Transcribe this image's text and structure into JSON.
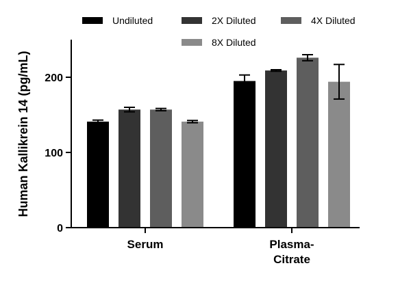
{
  "chart_data": {
    "type": "bar",
    "title": "",
    "xlabel": "",
    "ylabel": "Human Kallikrein 14 (pg/mL)",
    "ylim": [
      0,
      250
    ],
    "yticks": [
      0,
      100,
      200
    ],
    "categories": [
      {
        "lines": [
          "Serum"
        ]
      },
      {
        "lines": [
          "Plasma-",
          "Citrate"
        ]
      }
    ],
    "legend_position": "top",
    "grid": false,
    "series": [
      {
        "name": "Undiluted",
        "color": "#000000",
        "values": [
          141,
          195
        ],
        "errors": [
          2,
          8
        ]
      },
      {
        "name": "2X Diluted",
        "color": "#333333",
        "values": [
          157,
          209
        ],
        "errors": [
          3,
          1
        ]
      },
      {
        "name": "4X Diluted",
        "color": "#5e5e5e",
        "values": [
          157,
          226
        ],
        "errors": [
          1.5,
          4
        ]
      },
      {
        "name": "8X Diluted",
        "color": "#8a8a8a",
        "values": [
          141,
          194
        ],
        "errors": [
          1.5,
          23
        ]
      }
    ]
  }
}
